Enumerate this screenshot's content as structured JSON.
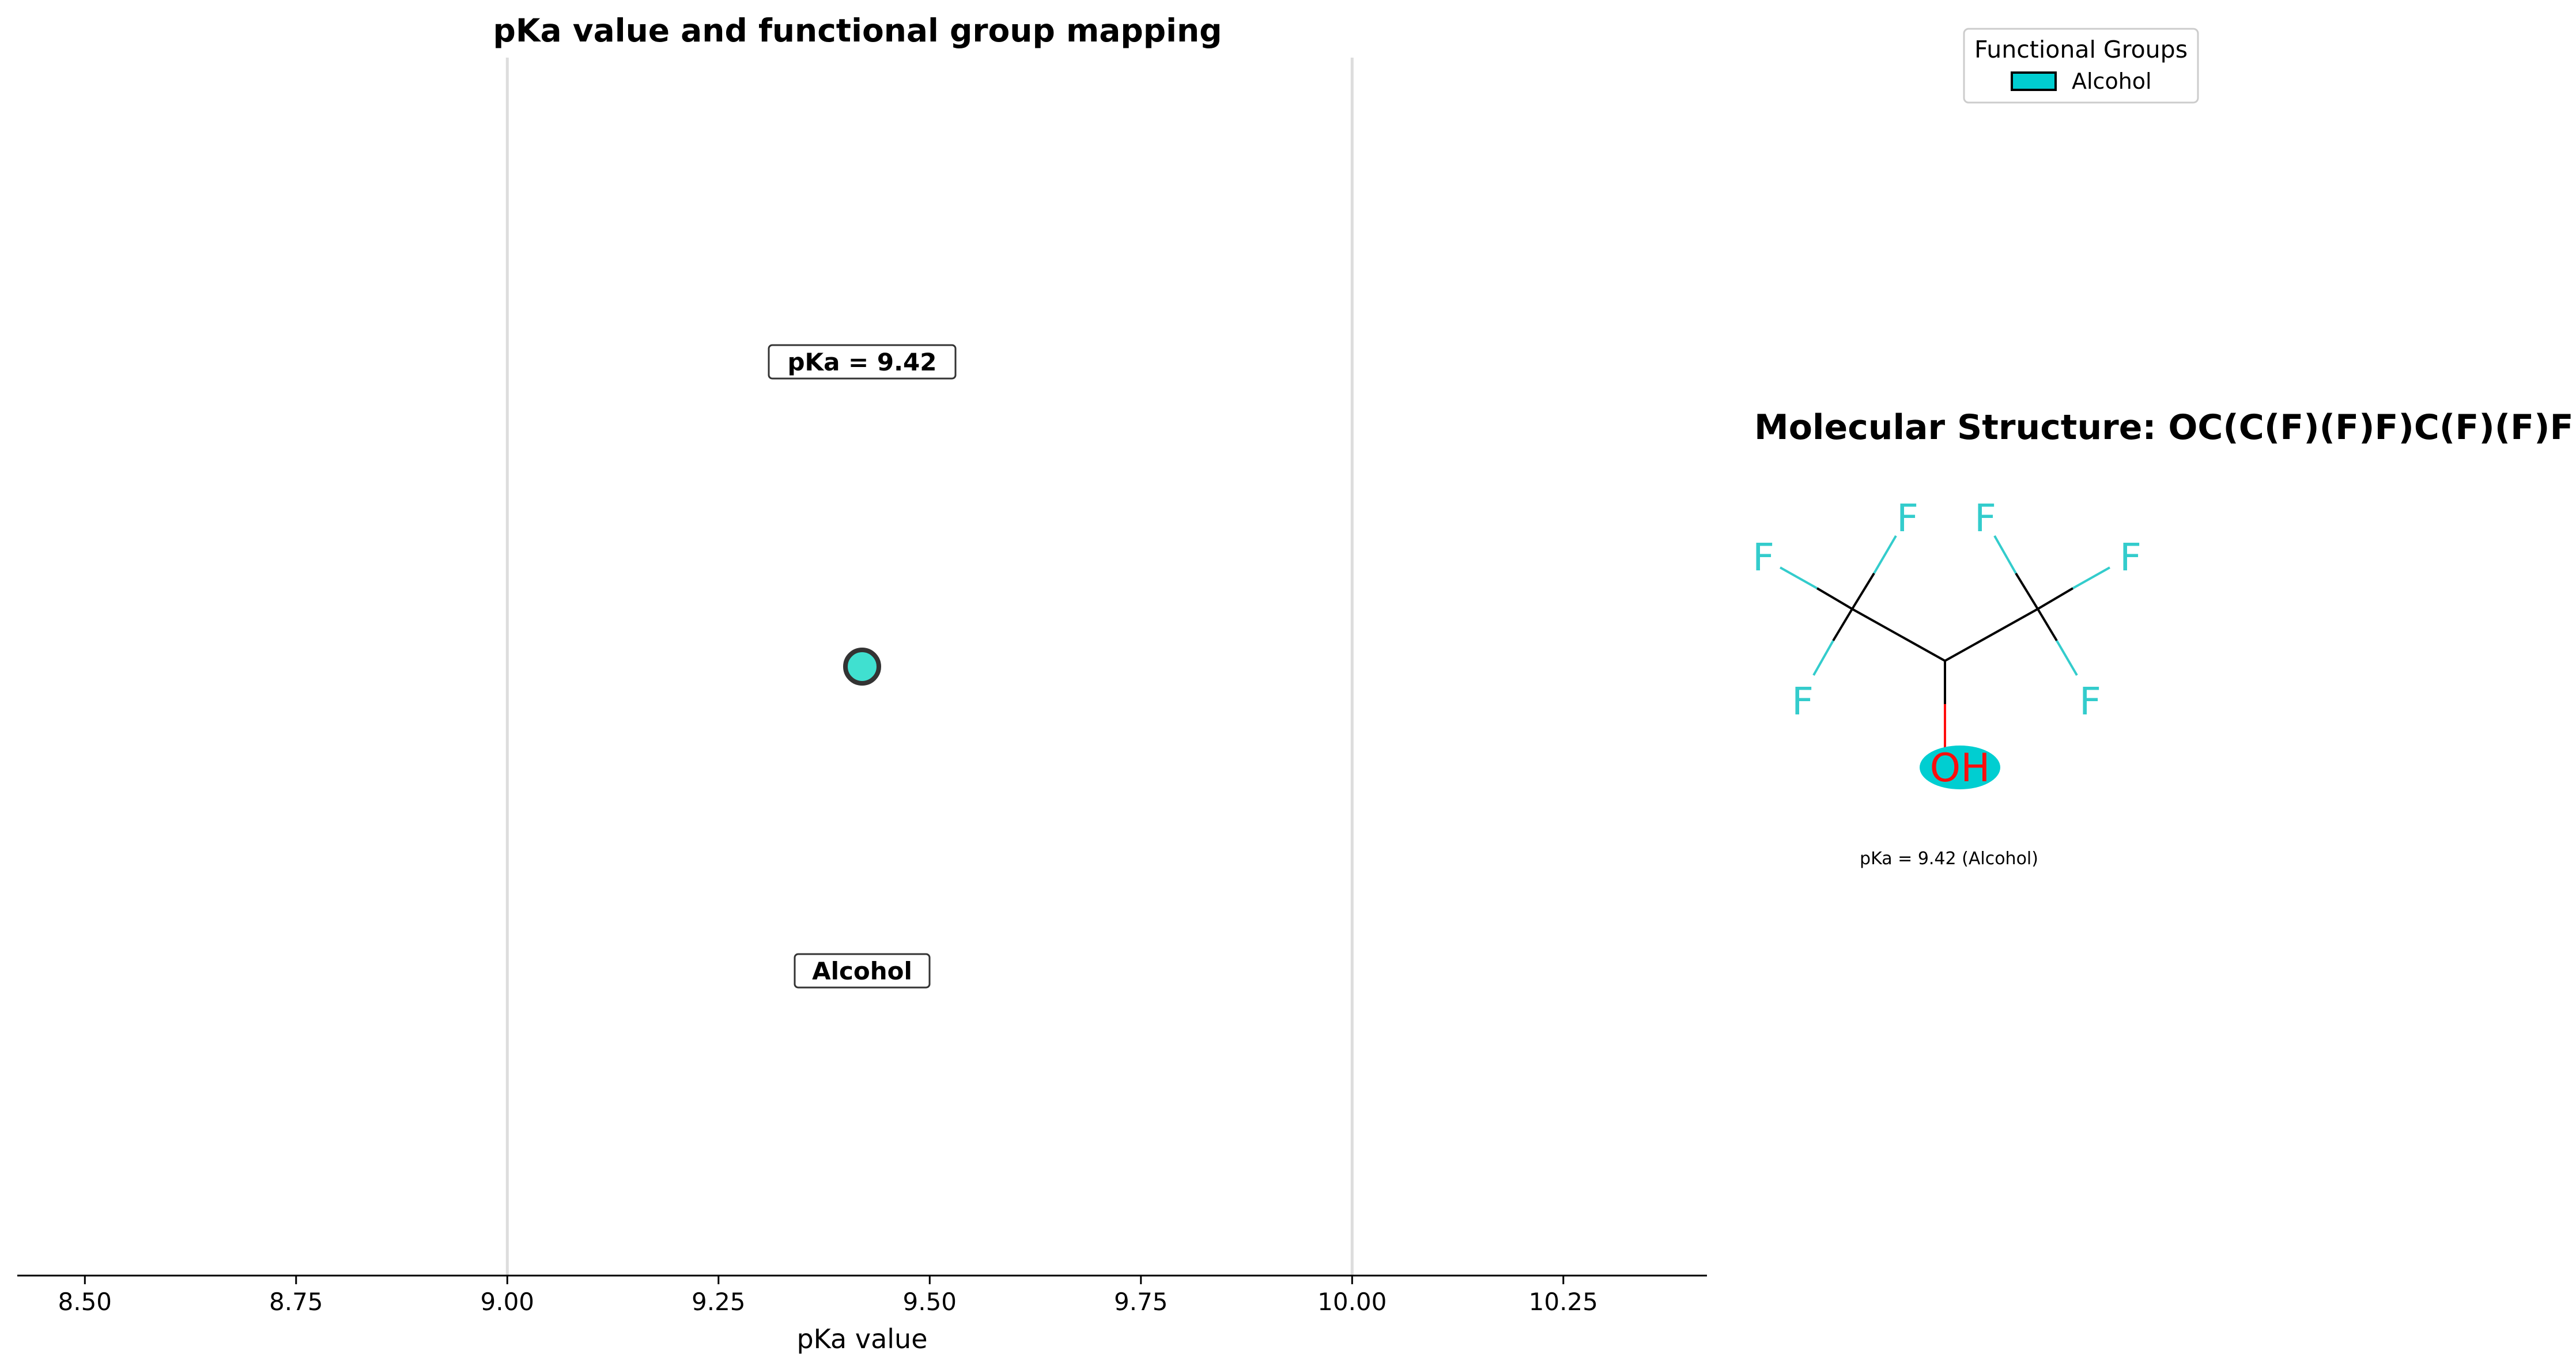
{
  "chart_data": {
    "type": "scatter",
    "title": "pKa value and functional group mapping",
    "xlabel": "pKa value",
    "xlim": [
      8.42,
      10.42
    ],
    "xticks": [
      "8.50",
      "8.75",
      "9.00",
      "9.25",
      "9.50",
      "9.75",
      "10.00",
      "10.25"
    ],
    "reference_lines": [
      9.0,
      10.0
    ],
    "points": [
      {
        "x": 9.42,
        "value_label": "pKa = 9.42",
        "group_label": "Alcohol",
        "color": "#40e0d0"
      }
    ],
    "legend": {
      "title": "Functional Groups",
      "placement": "top-right",
      "entries": [
        {
          "label": "Alcohol",
          "color": "#00ced1"
        }
      ]
    },
    "grid": false
  },
  "molecule": {
    "title": "Molecular Structure: OC(C(F)(F)F)C(F)(F)F",
    "atoms": {
      "fluorine": "F",
      "hydroxyl": "OH"
    },
    "caption": "pKa = 9.42 (Alcohol)",
    "colors": {
      "fluorine": "#33cccc",
      "oxygen": "#ff0d0d",
      "bond": "#000000",
      "highlight": "#00ced1"
    }
  }
}
